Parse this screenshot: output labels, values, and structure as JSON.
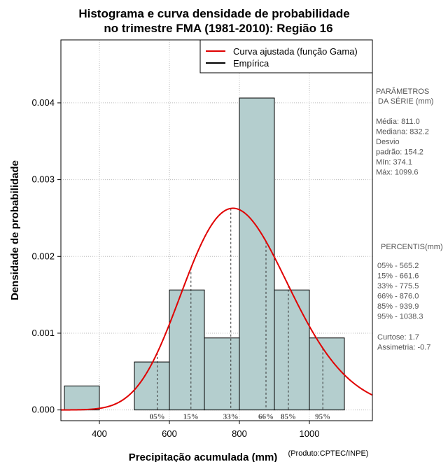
{
  "chart_data": {
    "type": "bar",
    "title_lines": [
      "Histograma e curva densidade de probabilidade",
      "no trimestre FMA (1981-2010): Região 16"
    ],
    "xlabel": "Precipitação acumulada (mm)",
    "ylabel": "Densidade de probabilidade",
    "credit": "(Produto:CPTEC/INPE)",
    "xlim": [
      290,
      1180
    ],
    "ylim": [
      -0.00014,
      0.00482
    ],
    "xticks": [
      400,
      600,
      800,
      1000
    ],
    "xtick_labels": [
      "400",
      "600",
      "800",
      "1000"
    ],
    "yticks": [
      0.0,
      0.001,
      0.002,
      0.003,
      0.004
    ],
    "ytick_labels": [
      "0.000",
      "0.001",
      "0.002",
      "0.003",
      "0.004"
    ],
    "bins": [
      {
        "start": 300,
        "end": 400,
        "density": 0.000313
      },
      {
        "start": 400,
        "end": 500,
        "density": 0.0
      },
      {
        "start": 500,
        "end": 600,
        "density": 0.000625
      },
      {
        "start": 600,
        "end": 700,
        "density": 0.001563
      },
      {
        "start": 700,
        "end": 800,
        "density": 0.000938
      },
      {
        "start": 800,
        "end": 900,
        "density": 0.004063
      },
      {
        "start": 900,
        "end": 1000,
        "density": 0.001563
      },
      {
        "start": 1000,
        "end": 1100,
        "density": 0.000938
      }
    ],
    "gamma_fit": {
      "mean": 811.0,
      "sd": 154.2
    },
    "legend": [
      {
        "label": "Curva ajustada (função Gama)",
        "color": "#e00000"
      },
      {
        "label": "Empírica",
        "color": "#000000"
      }
    ],
    "percentiles": [
      {
        "label": "05%",
        "value": 565.2
      },
      {
        "label": "15%",
        "value": 661.6
      },
      {
        "label": "33%",
        "value": 775.5
      },
      {
        "label": "66%",
        "value": 876.0
      },
      {
        "label": "85%",
        "value": 939.9
      },
      {
        "label": "95%",
        "value": 1038.3
      }
    ],
    "colors": {
      "bar_fill": "#b4cece",
      "bar_stroke": "#000000",
      "curve": "#e00000",
      "grid": "#bbbbbb",
      "side_text": "#555555"
    }
  },
  "side_panel": {
    "params_heading": [
      "PARÂMETROS",
      "DA SÉRIE (mm)"
    ],
    "params": [
      "Média:  811.0",
      "Mediana:  832.2",
      "Desvio",
      "padrão:  154.2",
      "Mín:  374.1",
      "Máx:  1099.6"
    ],
    "percentis_heading": "PERCENTIS(mm)",
    "percentis": [
      "05% -  565.2",
      "15% -  661.6",
      "33% -  775.5",
      "66% -  876.0",
      "85% -  939.9",
      "95% -  1038.3"
    ],
    "extra": [
      "Curtose:  1.7",
      "Assimetria:  -0.7"
    ]
  }
}
